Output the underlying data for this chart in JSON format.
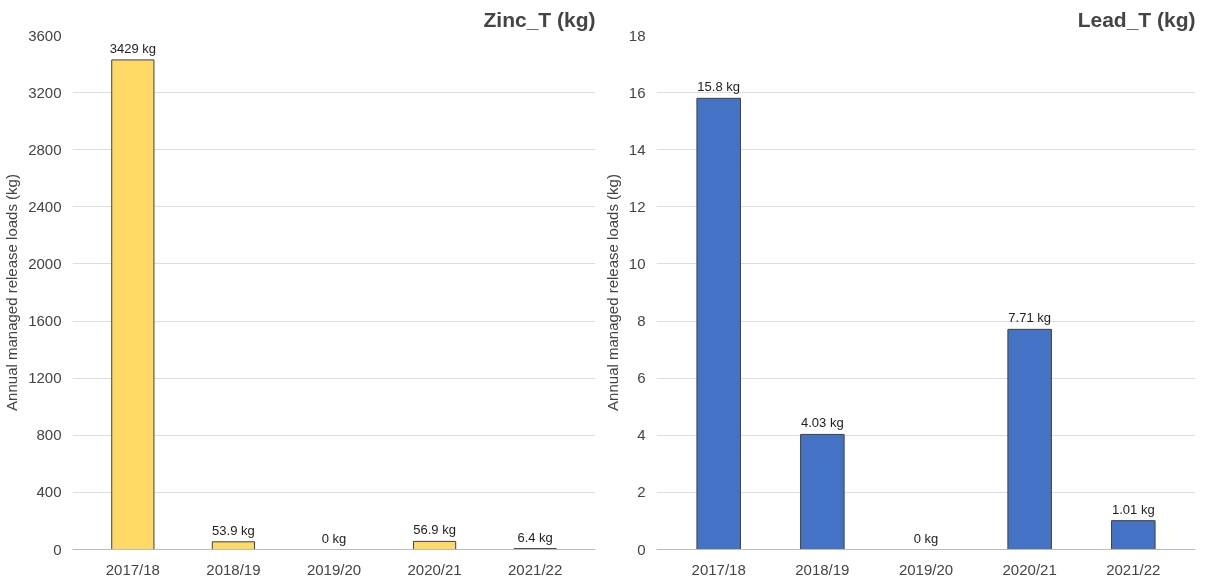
{
  "chart_data": [
    {
      "type": "bar",
      "title": "Zinc_T (kg)",
      "ylabel": "Annual managed release loads (kg)",
      "categories": [
        "2017/18",
        "2018/19",
        "2019/20",
        "2020/21",
        "2021/22"
      ],
      "values": [
        3429,
        53.9,
        0,
        56.9,
        6.4
      ],
      "value_labels": [
        "3429 kg",
        "53.9 kg",
        "0 kg",
        "56.9 kg",
        "6.4 kg"
      ],
      "color": "#ffd966",
      "ylim": [
        0,
        3600
      ],
      "yticks": [
        0,
        400,
        800,
        1200,
        1600,
        2000,
        2400,
        2800,
        3200,
        3600
      ],
      "grid": "y"
    },
    {
      "type": "bar",
      "title": "Lead_T (kg)",
      "ylabel": "Annual managed release loads (kg)",
      "categories": [
        "2017/18",
        "2018/19",
        "2019/20",
        "2020/21",
        "2021/22"
      ],
      "values": [
        15.8,
        4.03,
        0,
        7.71,
        1.01
      ],
      "value_labels": [
        "15.8 kg",
        "4.03 kg",
        "0 kg",
        "7.71 kg",
        "1.01 kg"
      ],
      "color": "#4472c4",
      "ylim": [
        0,
        18
      ],
      "yticks": [
        0,
        2,
        4,
        6,
        8,
        10,
        12,
        14,
        16,
        18
      ],
      "grid": "y"
    }
  ]
}
